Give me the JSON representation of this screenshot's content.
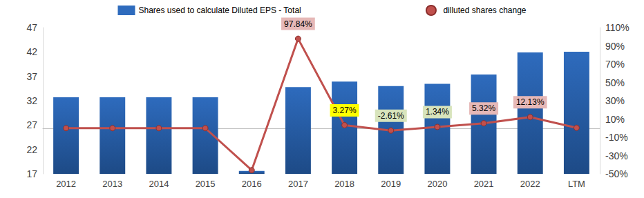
{
  "chart_data": {
    "type": "bar",
    "categories": [
      "2012",
      "2013",
      "2014",
      "2015",
      "2016",
      "2017",
      "2018",
      "2019",
      "2020",
      "2021",
      "2022",
      "LTM"
    ],
    "series": [
      {
        "name": "Shares used to calculate Diluted EPS - Total",
        "type": "bar",
        "color": "#2e6bbd",
        "values": [
          32.7,
          32.7,
          32.7,
          32.7,
          17.6,
          34.8,
          35.94,
          35.0,
          35.47,
          37.36,
          41.89,
          42.05
        ]
      },
      {
        "name": "dilluted shares change",
        "type": "line",
        "axis": "y2",
        "color": "#c0504d",
        "marker": "circle",
        "values": [
          0,
          0,
          0,
          0,
          -46,
          97.84,
          3.27,
          -2.61,
          1.34,
          5.32,
          12.13,
          0.4
        ],
        "value_labels": [
          null,
          null,
          null,
          null,
          null,
          "97.84%",
          "3.27%",
          "-2.61%",
          "1.34%",
          "5.32%",
          "12.13%",
          null
        ]
      }
    ],
    "ylim": [
      17,
      47
    ],
    "yticks": [
      17,
      22,
      27,
      32,
      37,
      42,
      47
    ],
    "y2lim": [
      -50,
      110
    ],
    "y2ticks": [
      {
        "value": -50,
        "label": "-50%"
      },
      {
        "value": -30,
        "label": "-30%"
      },
      {
        "value": -10,
        "label": "-10%"
      },
      {
        "value": 10,
        "label": "10%"
      },
      {
        "value": 30,
        "label": "30%"
      },
      {
        "value": 50,
        "label": "50%"
      },
      {
        "value": 70,
        "label": "70%"
      },
      {
        "value": 90,
        "label": "90%"
      },
      {
        "value": 110,
        "label": "110%"
      }
    ],
    "legend": "top",
    "grid": false,
    "data_labels": true
  }
}
